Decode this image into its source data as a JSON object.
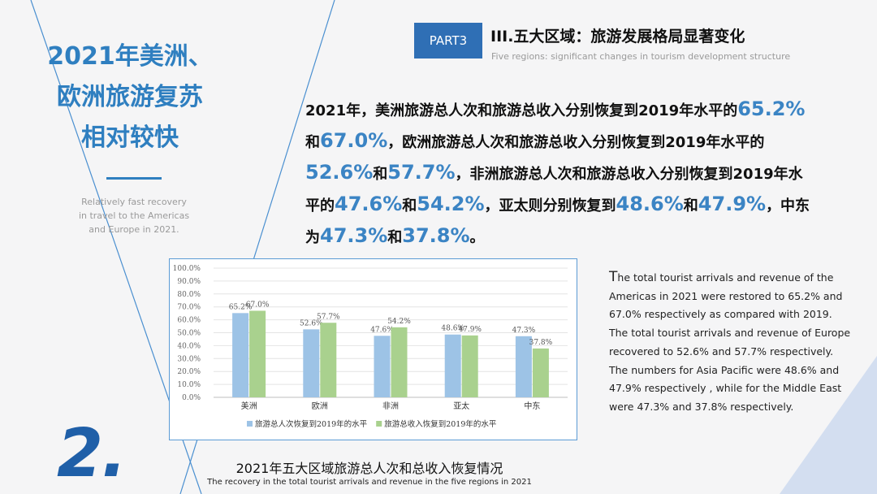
{
  "sidebar": {
    "title_lines": [
      "2021年美洲、",
      "欧洲旅游复苏",
      "相对较快"
    ],
    "subtitle_lines": [
      "Relatively fast recovery",
      "in travel to the Americas",
      "and Europe in 2021."
    ]
  },
  "header": {
    "part_label": "PART3",
    "title": "III.五大区域：旅游发展格局显著变化",
    "subtitle": "Five regions: significant changes in tourism development structure"
  },
  "summary": {
    "p1": "2021年，美洲旅游总人次和旅游总收入分别恢复到2019年水平的",
    "v1": "65.2%",
    "p2": "和",
    "v2": "67.0%",
    "p3": "，欧洲旅游总人次和旅游总收入分别恢复到2019年水平的",
    "v3": "52.6%",
    "p4": "和",
    "v4": "57.7%",
    "p5": "，非洲旅游总人次和旅游总收入分别恢复到2019年水平的",
    "v5": "47.6%",
    "p6": "和",
    "v6": "54.2%",
    "p7": "，亚太则分别恢复到",
    "v7": "48.6%",
    "p8": "和",
    "v8": "47.9%",
    "p9": "，中东为",
    "v9": "47.3%",
    "p10": "和",
    "v10": "37.8%",
    "p11": "。"
  },
  "description": {
    "first_letter": "T",
    "rest": "he total tourist arrivals and revenue of the Americas in 2021 were restored to 65.2% and 67.0% respectively as compared with 2019. The total tourist arrivals and revenue of Europe recovered to 52.6% and 57.7% respectively. The numbers for Asia Pacific were 48.6% and 47.9% respectively , while for the Middle East were 47.3% and 37.8% respectively."
  },
  "caption": {
    "cn": "2021年五大区域旅游总人次和总收入恢复情况",
    "en": "The recovery in the total tourist arrivals and revenue in the five regions in 2021"
  },
  "section_number": "2.",
  "chart_data": {
    "type": "bar",
    "title": "",
    "xlabel": "",
    "ylabel": "",
    "categories": [
      "美洲",
      "欧洲",
      "非洲",
      "亚太",
      "中东"
    ],
    "series": [
      {
        "name": "旅游总人次恢复到2019年的水平",
        "color": "#9dc3e6",
        "values": [
          65.2,
          52.6,
          47.6,
          48.6,
          47.3
        ],
        "labels": [
          "65.2%",
          "52.6%",
          "47.6%",
          "48.6%",
          "47.3%"
        ]
      },
      {
        "name": "旅游总收入恢复到2019年的水平",
        "color": "#a9d18e",
        "values": [
          67.0,
          57.7,
          54.2,
          47.9,
          37.8
        ],
        "labels": [
          "67.0%",
          "57.7%",
          "54.2%",
          "47.9%",
          "37.8%"
        ]
      }
    ],
    "ylim": [
      0,
      100
    ],
    "yticks": [
      "0.0%",
      "10.0%",
      "20.0%",
      "30.0%",
      "40.0%",
      "50.0%",
      "60.0%",
      "70.0%",
      "80.0%",
      "90.0%",
      "100.0%"
    ],
    "grid": true,
    "legend": "bottom"
  }
}
